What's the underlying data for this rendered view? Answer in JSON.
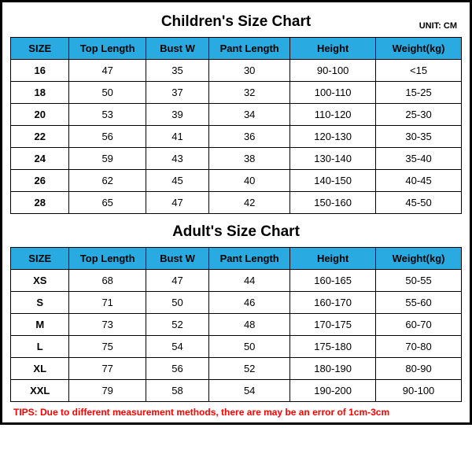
{
  "colors": {
    "header_bg": "#29abe2",
    "border": "#000000",
    "tips": "#ff0000",
    "background": "#ffffff"
  },
  "unit_label": "UNIT: CM",
  "columns": [
    "SIZE",
    "Top Length",
    "Bust W",
    "Pant Length",
    "Height",
    "Weight(kg)"
  ],
  "children": {
    "title": "Children's Size Chart",
    "rows": [
      [
        "16",
        "47",
        "35",
        "30",
        "90-100",
        "<15"
      ],
      [
        "18",
        "50",
        "37",
        "32",
        "100-110",
        "15-25"
      ],
      [
        "20",
        "53",
        "39",
        "34",
        "110-120",
        "25-30"
      ],
      [
        "22",
        "56",
        "41",
        "36",
        "120-130",
        "30-35"
      ],
      [
        "24",
        "59",
        "43",
        "38",
        "130-140",
        "35-40"
      ],
      [
        "26",
        "62",
        "45",
        "40",
        "140-150",
        "40-45"
      ],
      [
        "28",
        "65",
        "47",
        "42",
        "150-160",
        "45-50"
      ]
    ]
  },
  "adult": {
    "title": "Adult's Size Chart",
    "rows": [
      [
        "XS",
        "68",
        "47",
        "44",
        "160-165",
        "50-55"
      ],
      [
        "S",
        "71",
        "50",
        "46",
        "160-170",
        "55-60"
      ],
      [
        "M",
        "73",
        "52",
        "48",
        "170-175",
        "60-70"
      ],
      [
        "L",
        "75",
        "54",
        "50",
        "175-180",
        "70-80"
      ],
      [
        "XL",
        "77",
        "56",
        "52",
        "180-190",
        "80-90"
      ],
      [
        "XXL",
        "79",
        "58",
        "54",
        "190-200",
        "90-100"
      ]
    ]
  },
  "tips": "TIPS: Due to different measurement methods, there are may be an error of 1cm-3cm"
}
